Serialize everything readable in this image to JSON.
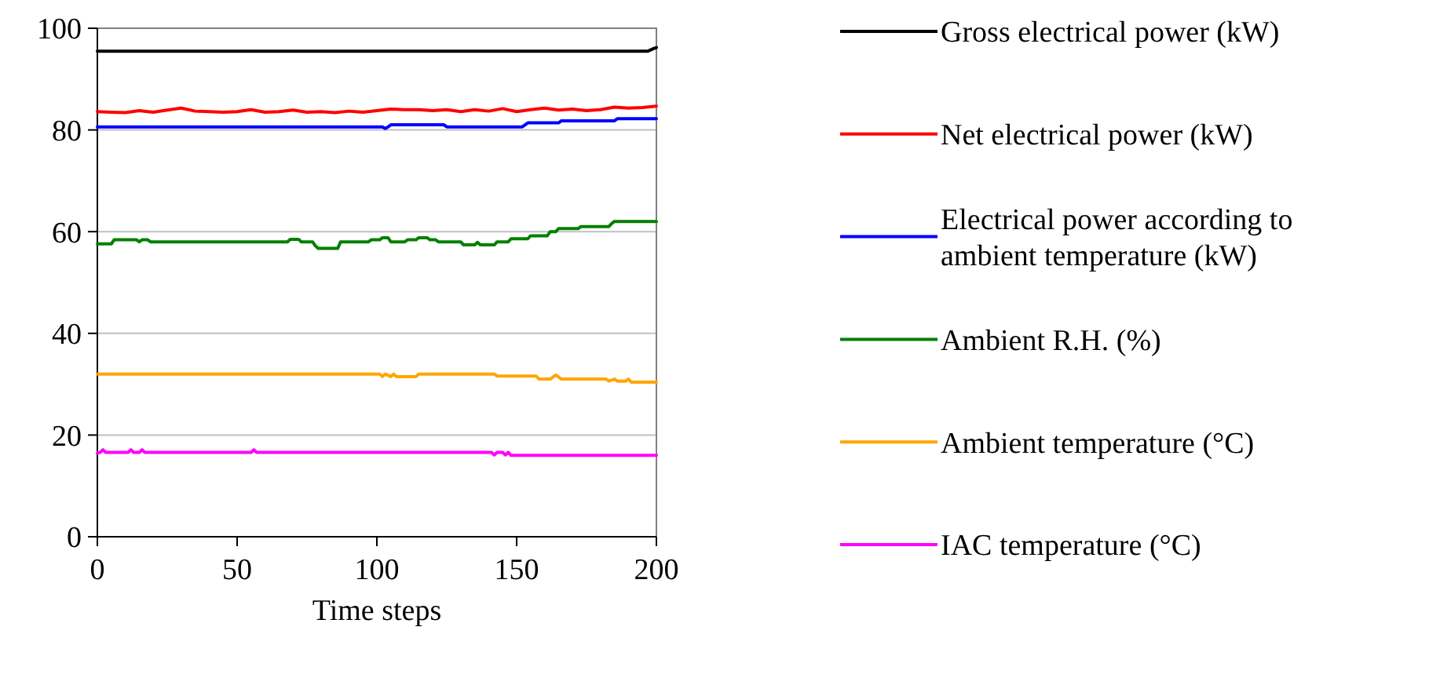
{
  "chart_data": {
    "type": "line",
    "xlabel": "Time steps",
    "xlim": [
      0,
      200
    ],
    "xticks": [
      0,
      50,
      100,
      150,
      200
    ],
    "ylim": [
      0,
      100
    ],
    "yticks": [
      0,
      20,
      40,
      60,
      80,
      100
    ],
    "grid": "y",
    "legend": "right",
    "marker": "none",
    "line_style": "solid",
    "series": [
      {
        "name": "Gross electrical power (kW)",
        "color": "#000000",
        "x": [
          0,
          100,
          197,
          199,
          200
        ],
        "values": [
          95.5,
          95.5,
          95.5,
          96,
          96.2
        ]
      },
      {
        "name": "Net electrical power (kW)",
        "color": "#ff0000",
        "x": [
          0,
          5,
          10,
          15,
          20,
          25,
          30,
          35,
          40,
          45,
          50,
          55,
          60,
          65,
          70,
          75,
          80,
          85,
          90,
          95,
          100,
          105,
          110,
          115,
          120,
          125,
          130,
          135,
          140,
          145,
          150,
          155,
          160,
          165,
          170,
          175,
          180,
          185,
          190,
          195,
          200
        ],
        "values": [
          83.6,
          83.5,
          83.4,
          83.8,
          83.5,
          83.9,
          84.3,
          83.7,
          83.6,
          83.5,
          83.6,
          84.0,
          83.5,
          83.6,
          83.9,
          83.5,
          83.6,
          83.4,
          83.7,
          83.5,
          83.8,
          84.1,
          84.0,
          84.0,
          83.8,
          84.0,
          83.6,
          84.0,
          83.7,
          84.2,
          83.6,
          84.0,
          84.3,
          83.9,
          84.1,
          83.8,
          84.0,
          84.5,
          84.3,
          84.4,
          84.7
        ]
      },
      {
        "name": "Electrical power according to ambient temperature (kW)",
        "color": "#0000ff",
        "x": [
          0,
          102,
          103,
          104,
          105,
          124,
          125,
          152,
          154,
          165,
          166,
          185,
          186,
          200
        ],
        "values": [
          80.6,
          80.6,
          80.3,
          80.6,
          81.0,
          81.0,
          80.6,
          80.6,
          81.4,
          81.4,
          81.8,
          81.8,
          82.2,
          82.2
        ]
      },
      {
        "name": "Ambient R.H. (%)",
        "color": "#008000",
        "x": [
          0,
          5,
          6,
          14,
          15,
          16,
          18,
          19,
          68,
          69,
          72,
          73,
          77,
          78,
          79,
          86,
          87,
          97,
          98,
          101,
          102,
          104,
          105,
          110,
          111,
          114,
          115,
          118,
          119,
          121,
          122,
          130,
          131,
          135,
          136,
          137,
          142,
          143,
          147,
          148,
          154,
          155,
          161,
          162,
          164,
          165,
          172,
          173,
          183,
          184,
          185,
          200
        ],
        "values": [
          57.6,
          57.6,
          58.4,
          58.4,
          58.0,
          58.4,
          58.4,
          58.0,
          58.0,
          58.5,
          58.5,
          58.0,
          58.0,
          57.2,
          56.7,
          56.7,
          58.0,
          58.0,
          58.4,
          58.4,
          58.8,
          58.8,
          58.0,
          58.0,
          58.4,
          58.4,
          58.8,
          58.8,
          58.4,
          58.4,
          58.0,
          58.0,
          57.4,
          57.4,
          57.9,
          57.4,
          57.4,
          58.0,
          58.0,
          58.6,
          58.6,
          59.2,
          59.2,
          60.0,
          60.0,
          60.6,
          60.6,
          61.0,
          61.0,
          61.6,
          62.0,
          62.0
        ]
      },
      {
        "name": "Ambient temperature (°C)",
        "color": "#ffa500",
        "x": [
          0,
          101,
          102,
          103,
          105,
          106,
          107,
          114,
          115,
          142,
          143,
          157,
          158,
          162,
          164,
          166,
          182,
          183,
          185,
          186,
          189,
          190,
          191,
          200
        ],
        "values": [
          32,
          32,
          31.5,
          32,
          31.5,
          32,
          31.5,
          31.5,
          32,
          32,
          31.6,
          31.6,
          31.0,
          31.0,
          31.8,
          31.0,
          31.0,
          30.6,
          31.0,
          30.6,
          30.6,
          31.0,
          30.4,
          30.4
        ]
      },
      {
        "name": "IAC temperature (°C)",
        "color": "#ff00ff",
        "x": [
          0,
          1,
          2,
          3,
          11,
          12,
          13,
          15,
          16,
          17,
          55,
          56,
          57,
          141,
          142,
          143,
          145,
          146,
          147,
          148,
          200
        ],
        "values": [
          16.4,
          16.6,
          17.1,
          16.6,
          16.6,
          17.1,
          16.6,
          16.6,
          17.1,
          16.6,
          16.6,
          17.1,
          16.6,
          16.6,
          16.1,
          16.6,
          16.6,
          16.1,
          16.6,
          16.0,
          16.0
        ]
      }
    ]
  }
}
